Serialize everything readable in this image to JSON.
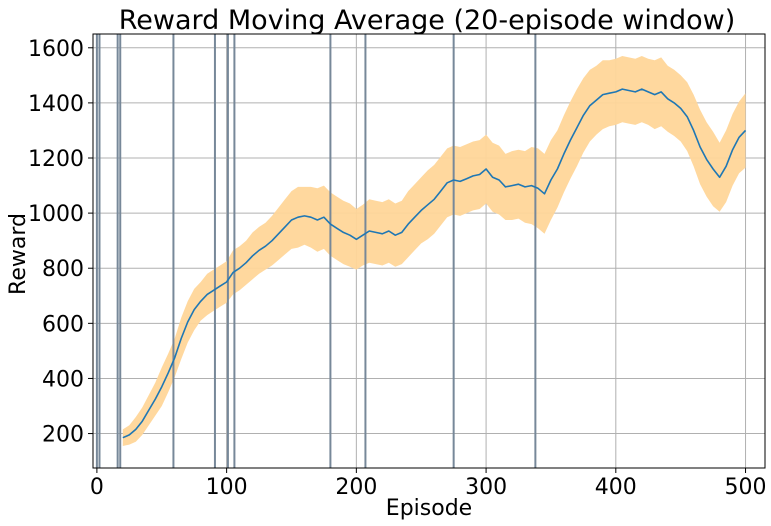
{
  "chart_data": {
    "type": "line",
    "title": "Reward Moving Average (20-episode window)",
    "xlabel": "Episode",
    "ylabel": "Reward",
    "xlim": [
      -3,
      515
    ],
    "ylim": [
      75,
      1650
    ],
    "xticks": [
      0,
      100,
      200,
      300,
      400,
      500
    ],
    "yticks": [
      200,
      400,
      600,
      800,
      1000,
      1200,
      1400,
      1600
    ],
    "grid": true,
    "colors": {
      "line": "#1f77b4",
      "band": "#ffd699",
      "vlines": "#778899",
      "grid": "#b0b0b0"
    },
    "vlines": [
      0,
      2,
      16,
      18,
      59,
      91,
      101,
      106,
      180,
      207,
      275,
      338
    ],
    "series": [
      {
        "x": [
          20,
          25,
          30,
          35,
          40,
          45,
          50,
          55,
          60,
          65,
          70,
          75,
          80,
          85,
          90,
          95,
          100,
          105,
          110,
          115,
          120,
          125,
          130,
          135,
          140,
          145,
          150,
          155,
          160,
          165,
          170,
          175,
          180,
          185,
          190,
          195,
          200,
          205,
          210,
          215,
          220,
          225,
          230,
          235,
          240,
          245,
          250,
          255,
          260,
          265,
          270,
          275,
          280,
          285,
          290,
          295,
          300,
          305,
          310,
          315,
          320,
          325,
          330,
          335,
          340,
          345,
          350,
          355,
          360,
          365,
          370,
          375,
          380,
          385,
          390,
          395,
          400,
          405,
          410,
          415,
          420,
          425,
          430,
          435,
          440,
          445,
          450,
          455,
          460,
          465,
          470,
          475,
          480,
          485,
          490,
          495,
          500
        ],
        "y": [
          185,
          195,
          215,
          245,
          285,
          325,
          370,
          420,
          475,
          545,
          605,
          650,
          680,
          705,
          720,
          735,
          750,
          785,
          800,
          820,
          845,
          865,
          880,
          900,
          925,
          950,
          975,
          985,
          990,
          985,
          975,
          985,
          960,
          945,
          930,
          920,
          905,
          920,
          935,
          930,
          925,
          935,
          920,
          930,
          960,
          985,
          1010,
          1030,
          1050,
          1080,
          1110,
          1120,
          1115,
          1125,
          1135,
          1140,
          1160,
          1130,
          1120,
          1095,
          1100,
          1105,
          1095,
          1100,
          1090,
          1070,
          1120,
          1160,
          1215,
          1265,
          1310,
          1355,
          1390,
          1410,
          1430,
          1435,
          1440,
          1450,
          1445,
          1440,
          1450,
          1440,
          1430,
          1440,
          1415,
          1400,
          1380,
          1350,
          1300,
          1240,
          1195,
          1160,
          1130,
          1170,
          1230,
          1275,
          1300
        ]
      }
    ],
    "band": {
      "lower": [
        155,
        160,
        170,
        195,
        230,
        265,
        300,
        350,
        405,
        470,
        530,
        575,
        610,
        630,
        645,
        660,
        675,
        705,
        720,
        740,
        760,
        780,
        795,
        810,
        830,
        850,
        870,
        875,
        885,
        875,
        860,
        870,
        845,
        830,
        815,
        805,
        795,
        810,
        820,
        815,
        810,
        820,
        805,
        815,
        840,
        865,
        890,
        905,
        925,
        955,
        985,
        995,
        990,
        1000,
        1010,
        1015,
        1035,
        1005,
        995,
        975,
        975,
        980,
        965,
        960,
        945,
        925,
        975,
        1020,
        1075,
        1125,
        1170,
        1220,
        1260,
        1285,
        1305,
        1315,
        1320,
        1330,
        1325,
        1320,
        1330,
        1320,
        1305,
        1315,
        1295,
        1280,
        1260,
        1225,
        1170,
        1105,
        1060,
        1025,
        1005,
        1040,
        1100,
        1145,
        1165
      ],
      "upper": [
        215,
        230,
        260,
        295,
        340,
        385,
        440,
        490,
        545,
        620,
        680,
        725,
        750,
        780,
        795,
        810,
        825,
        865,
        880,
        900,
        930,
        950,
        965,
        990,
        1020,
        1050,
        1080,
        1095,
        1095,
        1095,
        1090,
        1100,
        1075,
        1060,
        1045,
        1035,
        1015,
        1030,
        1050,
        1045,
        1040,
        1050,
        1035,
        1045,
        1080,
        1105,
        1130,
        1155,
        1175,
        1205,
        1235,
        1245,
        1240,
        1250,
        1260,
        1265,
        1285,
        1255,
        1245,
        1215,
        1225,
        1230,
        1225,
        1240,
        1235,
        1215,
        1265,
        1300,
        1355,
        1405,
        1450,
        1490,
        1520,
        1535,
        1555,
        1555,
        1560,
        1570,
        1565,
        1560,
        1570,
        1560,
        1555,
        1565,
        1535,
        1520,
        1500,
        1475,
        1430,
        1375,
        1330,
        1295,
        1255,
        1300,
        1360,
        1405,
        1435
      ]
    }
  }
}
